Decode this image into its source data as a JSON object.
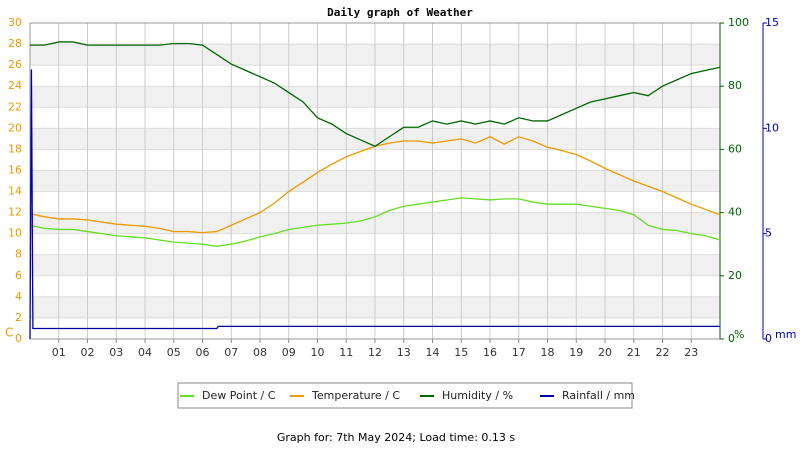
{
  "chart_data": {
    "type": "line",
    "title": "Daily graph of Weather",
    "footer": "Graph for: 7th May 2024; Load time: 0.13 s",
    "y_label": "C",
    "y2_label": "%",
    "y3_label": "mm",
    "xlim": [
      0,
      24
    ],
    "xticks": [
      {
        "value": 1,
        "label": "01"
      },
      {
        "value": 2,
        "label": "02"
      },
      {
        "value": 3,
        "label": "03"
      },
      {
        "value": 4,
        "label": "04"
      },
      {
        "value": 5,
        "label": "05"
      },
      {
        "value": 6,
        "label": "06"
      },
      {
        "value": 7,
        "label": "07"
      },
      {
        "value": 8,
        "label": "08"
      },
      {
        "value": 9,
        "label": "09"
      },
      10,
      11,
      12,
      13,
      14,
      15,
      16,
      17,
      18,
      19,
      20,
      21,
      22,
      23
    ],
    "ylim": [
      0,
      30
    ],
    "yticks": [
      0,
      2,
      4,
      6,
      8,
      10,
      12,
      14,
      16,
      18,
      20,
      22,
      24,
      26,
      28,
      30
    ],
    "y2lim": [
      0,
      100
    ],
    "y2ticks": [
      0,
      20,
      40,
      60,
      80,
      100
    ],
    "y3lim": [
      0,
      15
    ],
    "y3ticks": [
      0,
      5,
      10,
      15
    ],
    "grid": true,
    "x": [
      0,
      0.5,
      1,
      1.5,
      2,
      2.5,
      3,
      3.5,
      4,
      4.5,
      5,
      5.5,
      6,
      6.5,
      7,
      7.5,
      8,
      8.5,
      9,
      9.5,
      10,
      10.5,
      11,
      11.5,
      12,
      12.5,
      13,
      13.5,
      14,
      14.5,
      15,
      15.5,
      16,
      16.5,
      17,
      17.5,
      18,
      18.5,
      19,
      19.5,
      20,
      20.5,
      21,
      21.5,
      22,
      22.5,
      23,
      23.5,
      24
    ],
    "series": [
      {
        "name": "Dew Point / C",
        "color": "#66dd22",
        "axis": "y",
        "values": [
          10.8,
          10.5,
          10.4,
          10.4,
          10.2,
          10.0,
          9.8,
          9.7,
          9.6,
          9.4,
          9.2,
          9.1,
          9.0,
          8.8,
          9.0,
          9.3,
          9.7,
          10.0,
          10.4,
          10.6,
          10.8,
          10.9,
          11.0,
          11.2,
          11.6,
          12.2,
          12.6,
          12.8,
          13.0,
          13.2,
          13.4,
          13.3,
          13.2,
          13.3,
          13.3,
          13.0,
          12.8,
          12.8,
          12.8,
          12.6,
          12.4,
          12.2,
          11.8,
          10.8,
          10.4,
          10.3,
          10.0,
          9.8,
          9.4
        ]
      },
      {
        "name": "Temperature / C",
        "color": "#ee9900",
        "axis": "y",
        "values": [
          11.9,
          11.6,
          11.4,
          11.4,
          11.3,
          11.1,
          10.9,
          10.8,
          10.7,
          10.5,
          10.2,
          10.2,
          10.1,
          10.2,
          10.8,
          11.4,
          12.0,
          12.9,
          14.0,
          14.9,
          15.8,
          16.6,
          17.3,
          17.8,
          18.3,
          18.6,
          18.8,
          18.8,
          18.6,
          18.8,
          19.0,
          18.6,
          19.2,
          18.5,
          19.2,
          18.8,
          18.2,
          17.9,
          17.5,
          16.9,
          16.2,
          15.6,
          15.0,
          14.5,
          14.0,
          13.4,
          12.8,
          12.3,
          11.8
        ]
      },
      {
        "name": "Humidity / %",
        "color": "#006600",
        "axis": "y2",
        "values": [
          93,
          93,
          94,
          94,
          93,
          93,
          93,
          93,
          93,
          93,
          93.5,
          93.5,
          93,
          90,
          87,
          85,
          83,
          81,
          78,
          75,
          70,
          68,
          65,
          63,
          61,
          64,
          67,
          67,
          69,
          68,
          69,
          68,
          69,
          68,
          70,
          69,
          69,
          71,
          73,
          75,
          76,
          77,
          78,
          77,
          80,
          82,
          84,
          85,
          86
        ]
      },
      {
        "name": "Rainfall / mm",
        "color": "#0000aa",
        "axis": "y3",
        "x": [
          0,
          0.05,
          0.1,
          6.5,
          6.55,
          24
        ],
        "values": [
          0,
          12.8,
          0.5,
          0.5,
          0.6,
          0.6
        ]
      }
    ]
  }
}
